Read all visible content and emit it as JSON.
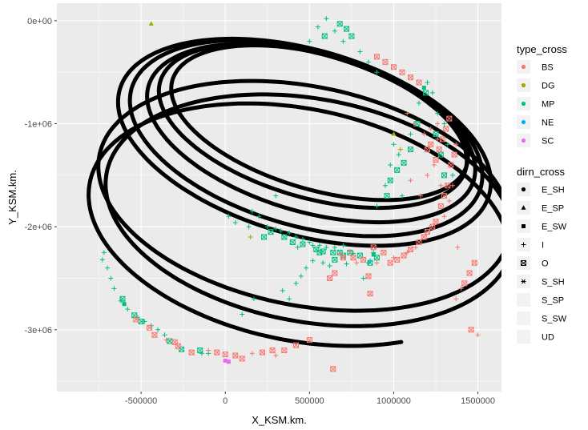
{
  "chart_data": {
    "type": "scatter",
    "title": "",
    "xlabel": "X_KSM.km.",
    "ylabel": "Y_KSM.km.",
    "xlim": [
      -1000000,
      1640000
    ],
    "ylim": [
      -3600000,
      170000
    ],
    "x_ticks": [
      {
        "value": -500000,
        "label": "-500000"
      },
      {
        "value": 0,
        "label": "0"
      },
      {
        "value": 500000,
        "label": "500000"
      },
      {
        "value": 1000000,
        "label": "1000000"
      },
      {
        "value": 1500000,
        "label": "1500000"
      }
    ],
    "y_ticks": [
      {
        "value": 0,
        "label": "0e+00"
      },
      {
        "value": -1000000,
        "label": "-1e+06"
      },
      {
        "value": -2000000,
        "label": "-2e+06"
      },
      {
        "value": -3000000,
        "label": "-3e+06"
      }
    ],
    "grid": true,
    "legend_placement": "right",
    "orbit_color": "#000000",
    "orbits": [
      {
        "cx": 470000,
        "cy": -1180000,
        "a": 1250000,
        "b": 820000,
        "rot": -38,
        "t0": 0,
        "t1": 360
      },
      {
        "cx": 480000,
        "cy": -1140000,
        "a": 1180000,
        "b": 780000,
        "rot": -38,
        "t0": 0,
        "t1": 360
      },
      {
        "cx": 510000,
        "cy": -1090000,
        "a": 1100000,
        "b": 700000,
        "rot": -37,
        "t0": 0,
        "t1": 360
      },
      {
        "cx": 520000,
        "cy": -1020000,
        "a": 1030000,
        "b": 640000,
        "rot": -36,
        "t0": 0,
        "t1": 360
      },
      {
        "cx": 560000,
        "cy": -990000,
        "a": 990000,
        "b": 600000,
        "rot": -35,
        "t0": 0,
        "t1": 360
      },
      {
        "cx": 470000,
        "cy": -1700000,
        "a": 1320000,
        "b": 1000000,
        "rot": -35,
        "t0": 0,
        "t1": 360
      },
      {
        "cx": 440000,
        "cy": -1980000,
        "a": 1360000,
        "b": 1050000,
        "rot": -38,
        "t0": 20,
        "t1": 330
      },
      {
        "cx": 500000,
        "cy": -1840000,
        "a": 1300000,
        "b": 1020000,
        "rot": -36,
        "t0": 0,
        "t1": 360
      }
    ],
    "legends": [
      {
        "title": "type_cross",
        "kind": "color",
        "entries": [
          {
            "label": "BS",
            "color": "#F8766D"
          },
          {
            "label": "DG",
            "color": "#A3A500"
          },
          {
            "label": "MP",
            "color": "#00BF7D"
          },
          {
            "label": "NE",
            "color": "#00B0F6"
          },
          {
            "label": "SC",
            "color": "#E76BF3"
          }
        ]
      },
      {
        "title": "dirn_cross",
        "kind": "shape",
        "entries": [
          {
            "label": "E_SH",
            "shape": "circle"
          },
          {
            "label": "E_SP",
            "shape": "triangle"
          },
          {
            "label": "E_SW",
            "shape": "square"
          },
          {
            "label": "I",
            "shape": "plus"
          },
          {
            "label": "O",
            "shape": "boxx"
          },
          {
            "label": "S_SH",
            "shape": "asterisk"
          },
          {
            "label": "S_SP",
            "shape": "none"
          },
          {
            "label": "S_SW",
            "shape": "none"
          },
          {
            "label": "UD",
            "shape": "none"
          }
        ]
      }
    ],
    "series": [
      {
        "type_cross": "MP",
        "dirn_cross": "I",
        "points": [
          [
            -720000,
            -2250000
          ],
          [
            -730000,
            -2320000
          ],
          [
            -700000,
            -2400000
          ],
          [
            -680000,
            -2500000
          ],
          [
            -660000,
            -2600000
          ],
          [
            -620000,
            -2720000
          ],
          [
            -580000,
            -2800000
          ],
          [
            -520000,
            -2880000
          ],
          [
            -480000,
            -2920000
          ],
          [
            -440000,
            -2960000
          ],
          [
            -400000,
            -3000000
          ],
          [
            -360000,
            -3050000
          ],
          [
            -140000,
            -3230000
          ],
          [
            -100000,
            -3230000
          ],
          [
            100000,
            -2850000
          ],
          [
            170000,
            -2700000
          ],
          [
            200000,
            -1900000
          ],
          [
            250000,
            -2000000
          ],
          [
            300000,
            -2020000
          ],
          [
            330000,
            -2040000
          ],
          [
            380000,
            -2060000
          ],
          [
            420000,
            -2100000
          ],
          [
            460000,
            -2120000
          ],
          [
            500000,
            -2150000
          ],
          [
            560000,
            -2180000
          ],
          [
            600000,
            -2200000
          ],
          [
            650000,
            -2200000
          ],
          [
            700000,
            -2180000
          ],
          [
            720000,
            -2360000
          ],
          [
            760000,
            -2260000
          ],
          [
            820000,
            -2500000
          ],
          [
            850000,
            -2350000
          ],
          [
            880000,
            -2250000
          ],
          [
            900000,
            -1800000
          ],
          [
            950000,
            -1600000
          ],
          [
            980000,
            -1400000
          ],
          [
            1000000,
            -1200000
          ],
          [
            1030000,
            -1300000
          ],
          [
            1050000,
            -1700000
          ],
          [
            1100000,
            -1100000
          ],
          [
            1150000,
            -800000
          ],
          [
            1200000,
            -600000
          ],
          [
            1230000,
            -700000
          ],
          [
            1260000,
            -900000
          ],
          [
            1300000,
            -1000000
          ],
          [
            1320000,
            -1200000
          ],
          [
            1350000,
            -1500000
          ],
          [
            900000,
            -500000
          ],
          [
            850000,
            -400000
          ],
          [
            800000,
            -300000
          ],
          [
            700000,
            -200000
          ],
          [
            650000,
            -100000
          ],
          [
            600000,
            20000
          ],
          [
            550000,
            -60000
          ],
          [
            500000,
            -200000
          ],
          [
            520000,
            -2180000
          ],
          [
            620000,
            -2380000
          ],
          [
            430000,
            -2200000
          ],
          [
            140000,
            -2000000
          ],
          [
            60000,
            -1960000
          ],
          [
            20000,
            -1900000
          ],
          [
            160000,
            -1850000
          ],
          [
            300000,
            -1700000
          ],
          [
            340000,
            -2620000
          ],
          [
            380000,
            -2700000
          ],
          [
            420000,
            -2550000
          ],
          [
            450000,
            -2480000
          ],
          [
            480000,
            -2400000
          ],
          [
            520000,
            -2330000
          ],
          [
            580000,
            -2350000
          ]
        ]
      },
      {
        "type_cross": "MP",
        "dirn_cross": "O",
        "points": [
          [
            -610000,
            -2700000
          ],
          [
            -540000,
            -2860000
          ],
          [
            -500000,
            -2920000
          ],
          [
            -330000,
            -3110000
          ],
          [
            -260000,
            -3190000
          ],
          [
            -150000,
            -3200000
          ],
          [
            230000,
            -2100000
          ],
          [
            270000,
            -2050000
          ],
          [
            350000,
            -2100000
          ],
          [
            400000,
            -2150000
          ],
          [
            460000,
            -2170000
          ],
          [
            540000,
            -2220000
          ],
          [
            580000,
            -2240000
          ],
          [
            640000,
            -2250000
          ],
          [
            680000,
            -2250000
          ],
          [
            740000,
            -2250000
          ],
          [
            800000,
            -2280000
          ],
          [
            860000,
            -2350000
          ],
          [
            900000,
            -2300000
          ],
          [
            960000,
            -1700000
          ],
          [
            980000,
            -1550000
          ],
          [
            1020000,
            -1450000
          ],
          [
            1060000,
            -1380000
          ],
          [
            1100000,
            -1250000
          ],
          [
            1140000,
            -1000000
          ],
          [
            1190000,
            -700000
          ],
          [
            1250000,
            -1100000
          ],
          [
            1280000,
            -1300000
          ],
          [
            1300000,
            -1500000
          ],
          [
            750000,
            -150000
          ],
          [
            720000,
            -80000
          ],
          [
            680000,
            -30000
          ],
          [
            590000,
            -150000
          ],
          [
            560000,
            -2250000
          ],
          [
            700000,
            -2280000
          ],
          [
            650000,
            -2320000
          ]
        ]
      },
      {
        "type_cross": "BS",
        "dirn_cross": "O",
        "points": [
          [
            -530000,
            -2900000
          ],
          [
            -450000,
            -2980000
          ],
          [
            -420000,
            -3050000
          ],
          [
            -300000,
            -3120000
          ],
          [
            -280000,
            -3160000
          ],
          [
            -200000,
            -3220000
          ],
          [
            -50000,
            -3220000
          ],
          [
            0,
            -3240000
          ],
          [
            60000,
            -3250000
          ],
          [
            100000,
            -3280000
          ],
          [
            220000,
            -3220000
          ],
          [
            280000,
            -3200000
          ],
          [
            350000,
            -3200000
          ],
          [
            420000,
            -3150000
          ],
          [
            500000,
            -3100000
          ],
          [
            620000,
            -2500000
          ],
          [
            650000,
            -2450000
          ],
          [
            700000,
            -2300000
          ],
          [
            760000,
            -2300000
          ],
          [
            820000,
            -2320000
          ],
          [
            880000,
            -2200000
          ],
          [
            940000,
            -2250000
          ],
          [
            980000,
            -2350000
          ],
          [
            1020000,
            -2320000
          ],
          [
            1060000,
            -2280000
          ],
          [
            1100000,
            -2220000
          ],
          [
            1150000,
            -2150000
          ],
          [
            1180000,
            -2100000
          ],
          [
            1200000,
            -2050000
          ],
          [
            1230000,
            -2000000
          ],
          [
            1250000,
            -1950000
          ],
          [
            1280000,
            -1800000
          ],
          [
            1300000,
            -1700000
          ],
          [
            1320000,
            -1600000
          ],
          [
            1340000,
            -1400000
          ],
          [
            1360000,
            -1300000
          ],
          [
            1200000,
            -1250000
          ],
          [
            1220000,
            -1200000
          ],
          [
            1250000,
            -1350000
          ],
          [
            1270000,
            -1250000
          ],
          [
            1290000,
            -1150000
          ],
          [
            1310000,
            -1050000
          ],
          [
            1330000,
            -950000
          ],
          [
            1050000,
            -500000
          ],
          [
            1100000,
            -550000
          ],
          [
            1150000,
            -600000
          ],
          [
            1000000,
            -450000
          ],
          [
            950000,
            -400000
          ],
          [
            900000,
            -350000
          ],
          [
            1420000,
            -2550000
          ],
          [
            1450000,
            -2450000
          ],
          [
            1480000,
            -2350000
          ],
          [
            1460000,
            -3000000
          ],
          [
            640000,
            -3380000
          ],
          [
            850000,
            -2480000
          ],
          [
            860000,
            -2650000
          ]
        ]
      },
      {
        "type_cross": "BS",
        "dirn_cross": "I",
        "points": [
          [
            -350000,
            -3100000
          ],
          [
            -100000,
            -3200000
          ],
          [
            160000,
            -3230000
          ],
          [
            300000,
            -3250000
          ],
          [
            680000,
            -2260000
          ],
          [
            740000,
            -2240000
          ],
          [
            780000,
            -2350000
          ],
          [
            900000,
            -2350000
          ],
          [
            1000000,
            -2300000
          ],
          [
            1080000,
            -2250000
          ],
          [
            1130000,
            -2200000
          ],
          [
            1160000,
            -1700000
          ],
          [
            1200000,
            -1500000
          ],
          [
            1240000,
            -1400000
          ],
          [
            1260000,
            -1000000
          ],
          [
            1280000,
            -1600000
          ],
          [
            1300000,
            -1900000
          ],
          [
            1330000,
            -1750000
          ],
          [
            1350000,
            -1600000
          ],
          [
            1370000,
            -1200000
          ],
          [
            1100000,
            -1550000
          ],
          [
            1080000,
            -900000
          ],
          [
            1120000,
            -1000000
          ],
          [
            1180000,
            -1100000
          ],
          [
            1220000,
            -1050000
          ],
          [
            1260000,
            -1150000
          ],
          [
            1380000,
            -2200000
          ],
          [
            1400000,
            -2600000
          ],
          [
            1370000,
            -2700000
          ],
          [
            1500000,
            -3050000
          ]
        ]
      },
      {
        "type_cross": "DG",
        "dirn_cross": "E_SP",
        "points": [
          [
            -440000,
            -30000
          ],
          [
            1000000,
            -1100000
          ]
        ]
      },
      {
        "type_cross": "DG",
        "dirn_cross": "I",
        "points": [
          [
            1040000,
            -1250000
          ],
          [
            150000,
            -2100000
          ]
        ]
      },
      {
        "type_cross": "MP",
        "dirn_cross": "E_SW",
        "points": [
          [
            -600000,
            -2750000
          ],
          [
            1180000,
            -650000
          ],
          [
            880000,
            -2270000
          ]
        ]
      },
      {
        "type_cross": "SC",
        "dirn_cross": "E_SW",
        "points": [
          [
            0,
            -3300000
          ],
          [
            20000,
            -3310000
          ]
        ]
      },
      {
        "type_cross": "NE",
        "dirn_cross": "I",
        "points": [
          [
            860000,
            -2330000
          ]
        ]
      }
    ]
  }
}
